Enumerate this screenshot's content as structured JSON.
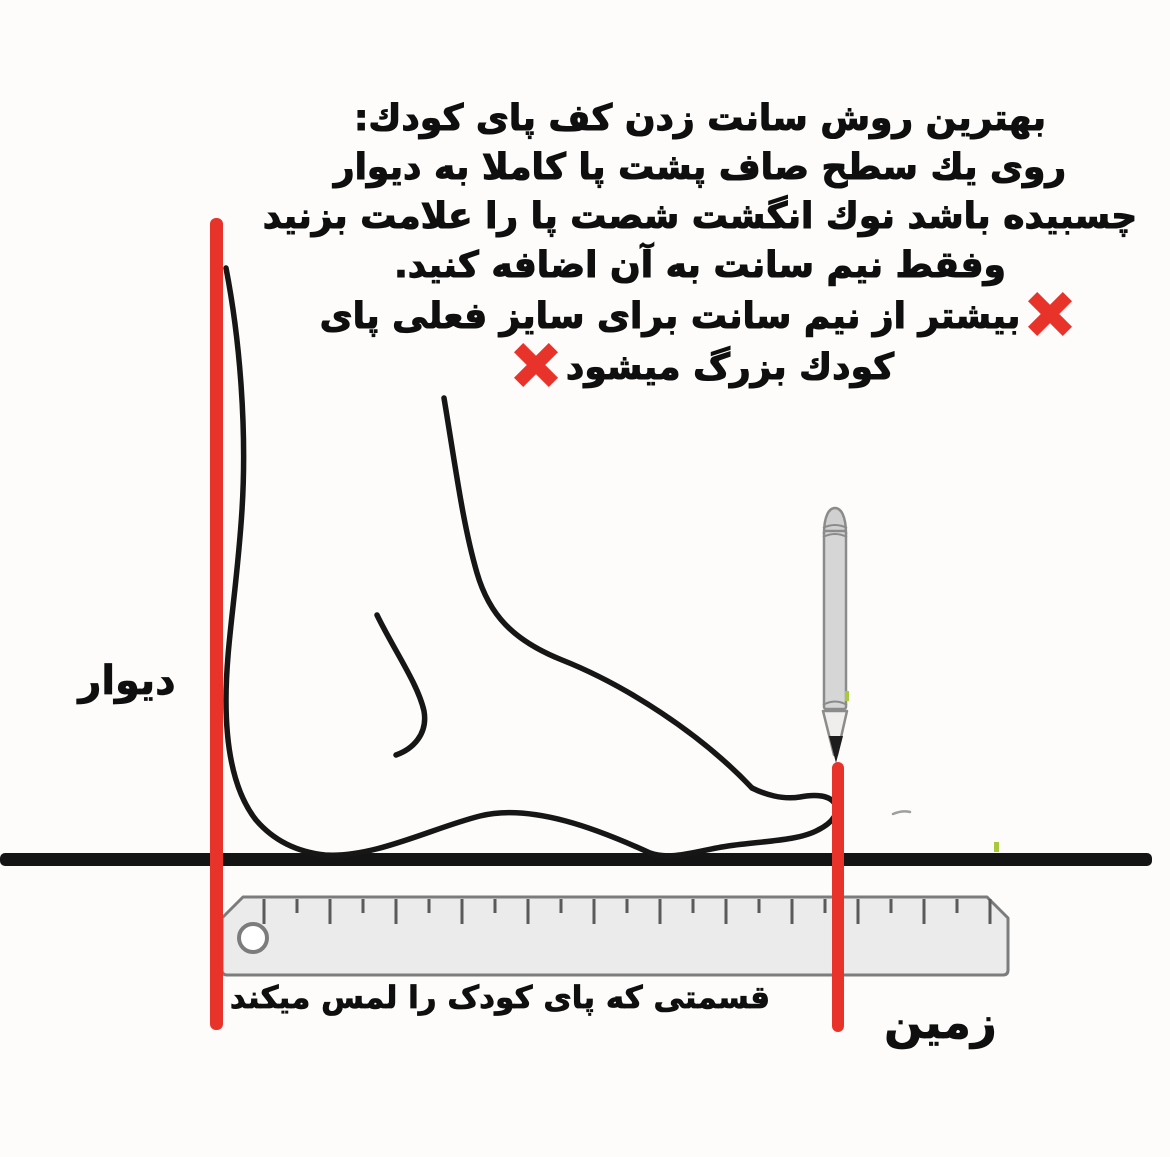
{
  "instructions": {
    "lines": [
      "بهترین روش سانت زدن کف پای کودك:",
      "روی یك سطح صاف پشت پا کاملا به دیوار",
      "چسبیده باشد نوك انگشت شصت پا را علامت بزنید",
      "وفقط نیم سانت به آن اضافه کنید.",
      "بیشتر از نیم سانت برای سایز فعلی پای",
      "کودك بزرگ میشود"
    ]
  },
  "labels": {
    "wall": "دیوار",
    "ground": "زمین",
    "ruler_caption": "قسمتی که پای کودک را لمس میکند"
  },
  "colors": {
    "accent_red": "#e8332b",
    "ink": "#141414",
    "ruler_fill": "#ebebeb",
    "ruler_border": "#7c7c7c",
    "pencil_body": "#d6d6d6",
    "artifact_green": "#a8c93e"
  },
  "ruler": {
    "tick_start_x": 264,
    "tick_step": 33,
    "tick_count": 23,
    "tick_top_y": 899,
    "tick_long_y": 924,
    "tick_short_y": 913
  }
}
